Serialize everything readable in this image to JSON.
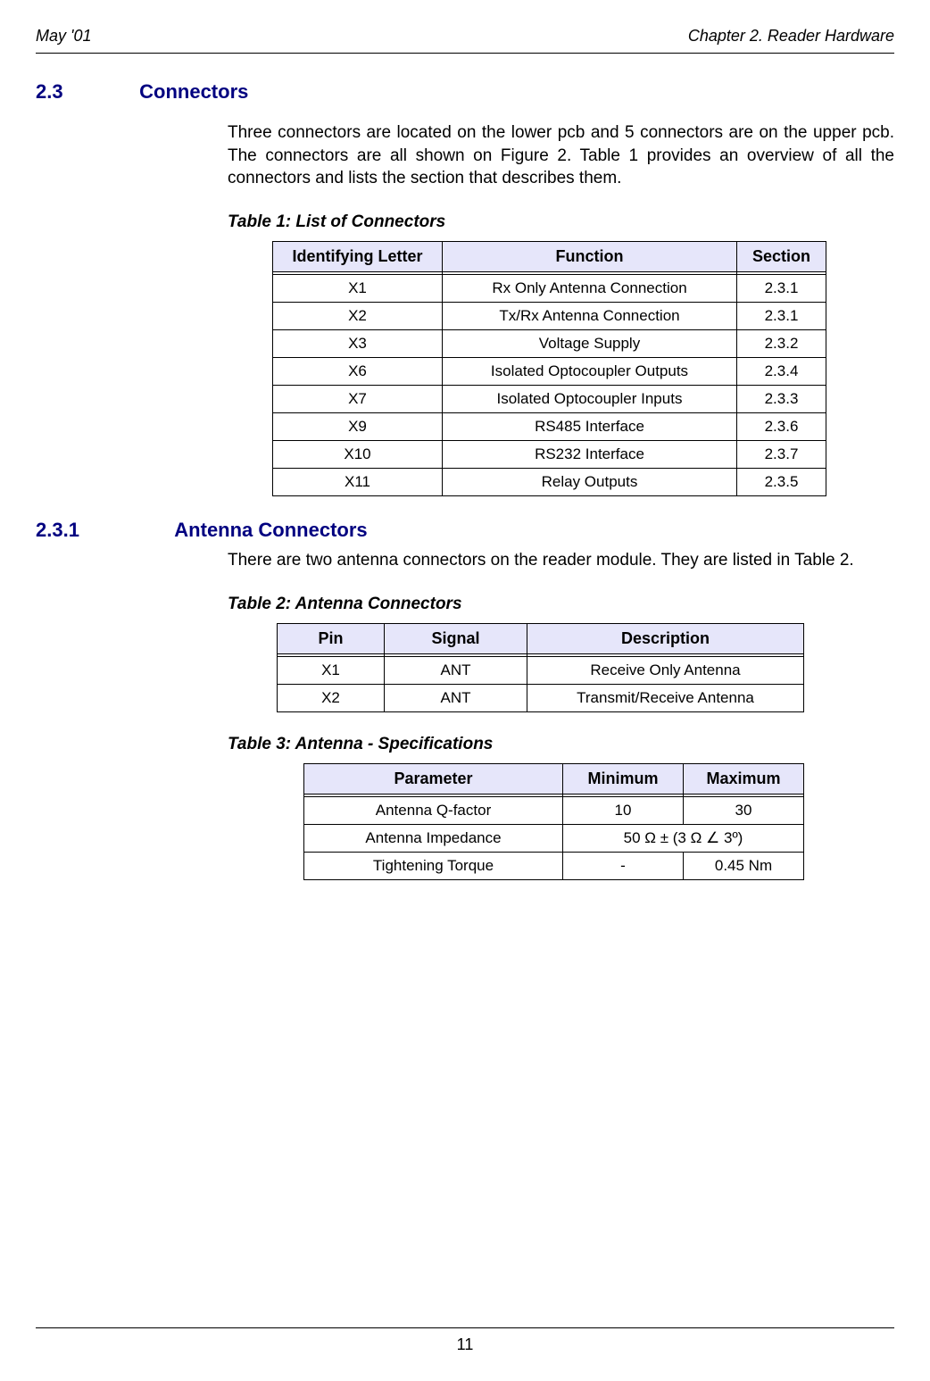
{
  "header": {
    "left": "May '01",
    "right": "Chapter 2. Reader Hardware"
  },
  "section": {
    "number": "2.3",
    "title": "Connectors"
  },
  "intro_text": "Three connectors are located on the lower pcb and 5 connectors are on the upper pcb. The connectors are all shown on Figure 2. Table 1 provides an overview of all the connectors and lists the section that describes them.",
  "table1": {
    "caption": "Table 1: List of Connectors",
    "headers": [
      "Identifying Letter",
      "Function",
      "Section"
    ],
    "rows": [
      [
        "X1",
        "Rx Only Antenna Connection",
        "2.3.1"
      ],
      [
        "X2",
        "Tx/Rx Antenna Connection",
        "2.3.1"
      ],
      [
        "X3",
        "Voltage Supply",
        "2.3.2"
      ],
      [
        "X6",
        "Isolated Optocoupler Outputs",
        "2.3.4"
      ],
      [
        "X7",
        "Isolated Optocoupler Inputs",
        "2.3.3"
      ],
      [
        "X9",
        "RS485 Interface",
        "2.3.6"
      ],
      [
        "X10",
        "RS232 Interface",
        "2.3.7"
      ],
      [
        "X11",
        "Relay Outputs",
        "2.3.5"
      ]
    ]
  },
  "subsection": {
    "number": "2.3.1",
    "title": "Antenna Connectors"
  },
  "subsection_text": "There are two antenna connectors on the reader module. They are listed in Table 2.",
  "table2": {
    "caption": "Table 2: Antenna Connectors",
    "headers": [
      "Pin",
      "Signal",
      "Description"
    ],
    "rows": [
      [
        "X1",
        "ANT",
        "Receive Only Antenna"
      ],
      [
        "X2",
        "ANT",
        "Transmit/Receive Antenna"
      ]
    ]
  },
  "table3": {
    "caption": "Table 3: Antenna - Specifications",
    "headers": [
      "Parameter",
      "Minimum",
      "Maximum"
    ],
    "rows": [
      {
        "param": "Antenna Q-factor",
        "min": "10",
        "max": "30",
        "merged": false
      },
      {
        "param": "Antenna Impedance",
        "value": "50 Ω ± (3 Ω ∠ 3º)",
        "merged": true
      },
      {
        "param": "Tightening Torque",
        "min": "-",
        "max": "0.45 Nm",
        "merged": false
      }
    ]
  },
  "footer": {
    "page_number": "11"
  },
  "colors": {
    "heading_color": "#000080",
    "table_header_bg": "#e6e6fa",
    "text_color": "#000000",
    "background": "#ffffff"
  }
}
